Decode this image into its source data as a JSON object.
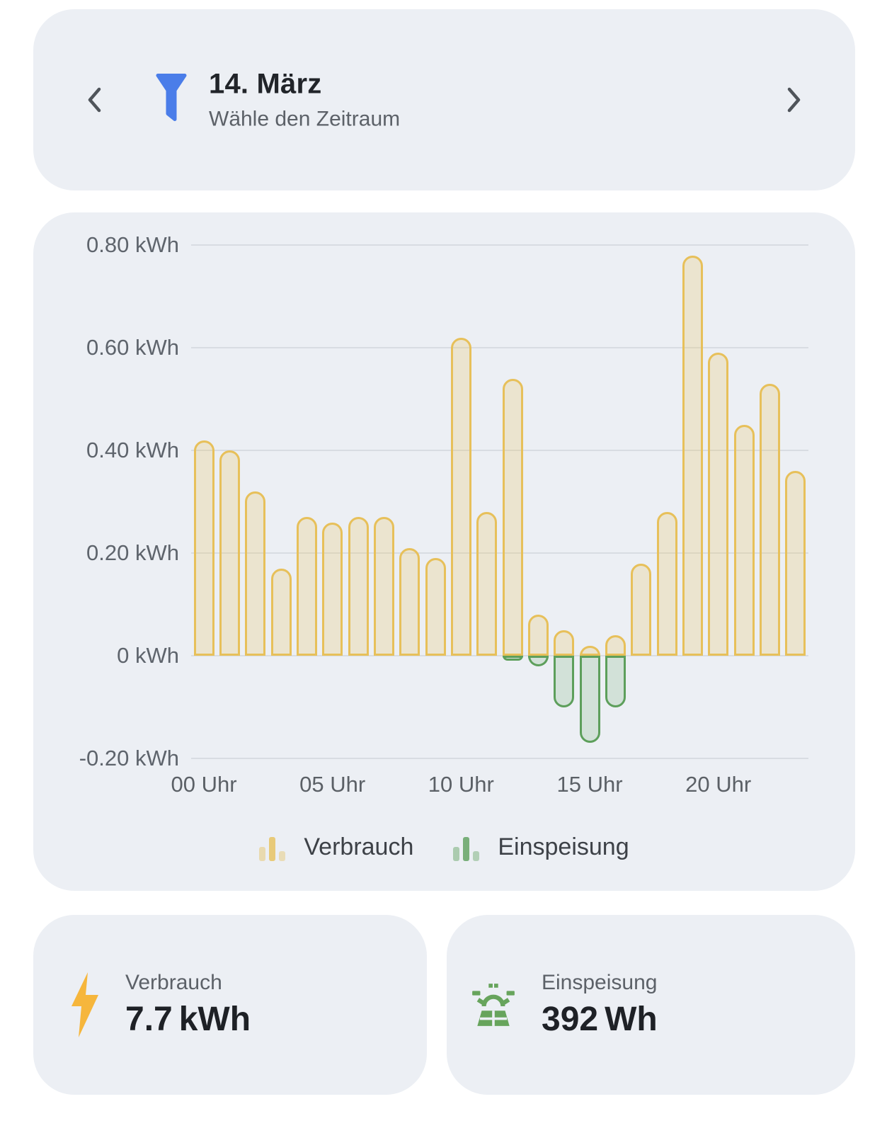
{
  "app": {
    "background_color": "#ffffff",
    "card_background_color": "#eceff4"
  },
  "header": {
    "title": "14. März",
    "subtitle": "Wähle den Zeitraum",
    "prev_icon": "chevron-left",
    "next_icon": "chevron-right",
    "filter_icon": "funnel",
    "filter_icon_color": "#4a7de9"
  },
  "chart_data": {
    "type": "bar",
    "unit": "kWh",
    "x": [
      0,
      1,
      2,
      3,
      4,
      5,
      6,
      7,
      8,
      9,
      10,
      11,
      12,
      13,
      14,
      15,
      16,
      17,
      18,
      19,
      20,
      21,
      22,
      23
    ],
    "series": [
      {
        "name": "Verbrauch",
        "color": "#e7c05a",
        "fill": "rgba(233,197,100,0.26)",
        "values": [
          0.42,
          0.4,
          0.32,
          0.17,
          0.27,
          0.26,
          0.27,
          0.27,
          0.21,
          0.19,
          0.62,
          0.28,
          0.54,
          0.08,
          0.05,
          0.02,
          0.04,
          0.18,
          0.28,
          0.78,
          0.59,
          0.45,
          0.53,
          0.36
        ]
      },
      {
        "name": "Einspeisung",
        "color": "#5d9f5b",
        "fill": "rgba(93,159,91,0.18)",
        "values": [
          0,
          0,
          0,
          0,
          0,
          0,
          0,
          0,
          0,
          0,
          0,
          0,
          -0.01,
          -0.02,
          -0.1,
          -0.17,
          -0.1,
          0,
          0,
          0,
          0,
          0,
          0,
          0
        ]
      }
    ],
    "ylim": [
      -0.2,
      0.8
    ],
    "y_ticks": [
      {
        "label": "0.80 kWh",
        "value": 0.8
      },
      {
        "label": "0.60 kWh",
        "value": 0.6
      },
      {
        "label": "0.40 kWh",
        "value": 0.4
      },
      {
        "label": "0.20 kWh",
        "value": 0.2
      },
      {
        "label": "0 kWh",
        "value": 0
      },
      {
        "label": "-0.20 kWh",
        "value": -0.2
      }
    ],
    "x_ticks": [
      {
        "label": "00 Uhr",
        "hour": 0
      },
      {
        "label": "05 Uhr",
        "hour": 5
      },
      {
        "label": "10 Uhr",
        "hour": 10
      },
      {
        "label": "15 Uhr",
        "hour": 15
      },
      {
        "label": "20 Uhr",
        "hour": 20
      }
    ],
    "grid": true,
    "legend_position": "bottom"
  },
  "legend": {
    "items": [
      {
        "label": "Verbrauch",
        "series": 0
      },
      {
        "label": "Einspeisung",
        "series": 1
      }
    ]
  },
  "summary_cards": [
    {
      "icon": "lightning-bolt",
      "icon_color": "#f6b63c",
      "label": "Verbrauch",
      "value": "7.7",
      "unit": "kWh"
    },
    {
      "icon": "solar-panel",
      "icon_color": "#67a45c",
      "label": "Einspeisung",
      "value": "392",
      "unit": "Wh"
    }
  ]
}
